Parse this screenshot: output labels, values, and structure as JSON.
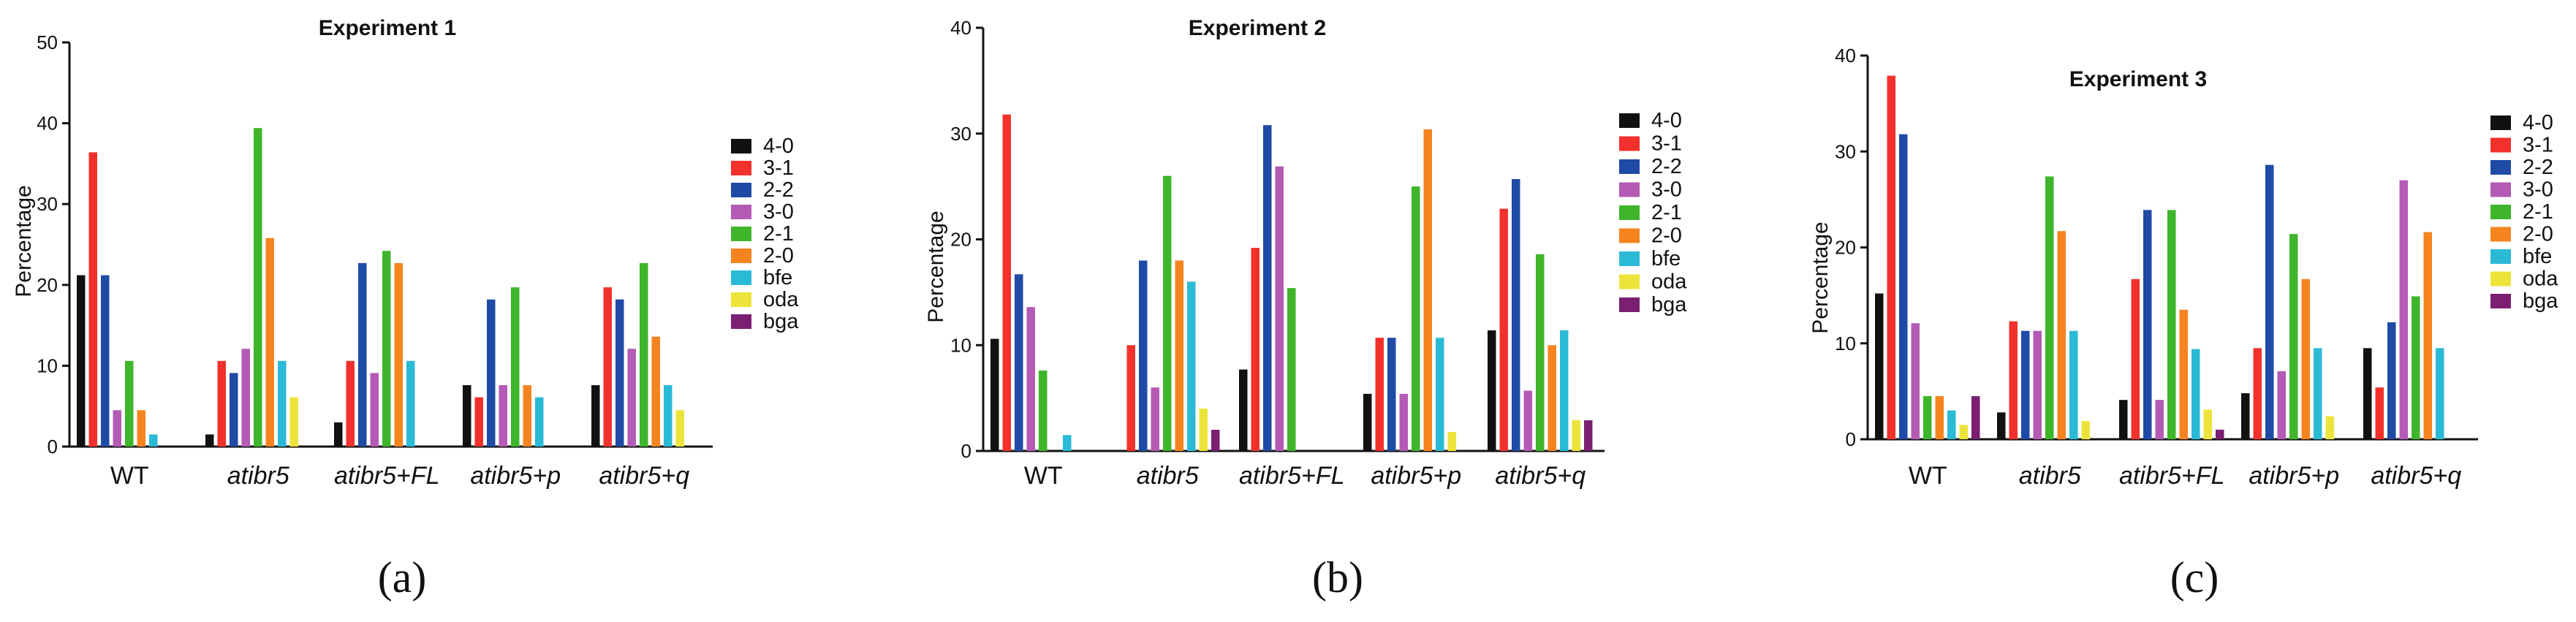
{
  "legend_items": [
    {
      "name": "4-0",
      "color": "#111111"
    },
    {
      "name": "3-1",
      "color": "#f2312c"
    },
    {
      "name": "2-2",
      "color": "#1f4aa6"
    },
    {
      "name": "3-0",
      "color": "#b35bb5"
    },
    {
      "name": "2-1",
      "color": "#3fb52b"
    },
    {
      "name": "2-0",
      "color": "#f5841f"
    },
    {
      "name": "bfe",
      "color": "#2bbad6"
    },
    {
      "name": "oda",
      "color": "#ece43a"
    },
    {
      "name": "bga",
      "color": "#7a1f72"
    }
  ],
  "panel_labels": [
    "(a)",
    "(b)",
    "(c)"
  ],
  "chart_data": [
    {
      "type": "bar",
      "title": "Experiment 1",
      "ylabel": "Percentage",
      "xlabel": "",
      "ylim": [
        0,
        50
      ],
      "yticks": [
        0,
        10,
        20,
        30,
        40,
        50
      ],
      "categories": [
        "WT",
        "atibr5",
        "atibr5+FL",
        "atibr5+p",
        "atibr5+q"
      ],
      "category_italic": [
        false,
        true,
        true,
        true,
        true
      ],
      "series": [
        {
          "name": "4-0",
          "values": [
            21.2,
            1.5,
            3.0,
            7.6,
            7.6
          ]
        },
        {
          "name": "3-1",
          "values": [
            36.4,
            10.6,
            10.6,
            6.1,
            19.7
          ]
        },
        {
          "name": "2-2",
          "values": [
            21.2,
            9.1,
            22.7,
            18.2,
            18.2
          ]
        },
        {
          "name": "3-0",
          "values": [
            4.5,
            12.1,
            9.1,
            7.6,
            12.1
          ]
        },
        {
          "name": "2-1",
          "values": [
            10.6,
            39.4,
            24.2,
            19.7,
            22.7
          ]
        },
        {
          "name": "2-0",
          "values": [
            4.5,
            25.8,
            22.7,
            7.6,
            13.6
          ]
        },
        {
          "name": "bfe",
          "values": [
            1.5,
            10.6,
            10.6,
            6.1,
            7.6
          ]
        },
        {
          "name": "oda",
          "values": [
            0,
            6.1,
            0,
            0,
            4.5
          ]
        },
        {
          "name": "bga",
          "values": [
            0,
            0,
            0,
            0,
            0
          ]
        }
      ]
    },
    {
      "type": "bar",
      "title": "Experiment 2",
      "ylabel": "Percentage",
      "xlabel": "",
      "ylim": [
        0,
        40
      ],
      "yticks": [
        0,
        10,
        20,
        30,
        40
      ],
      "categories": [
        "WT",
        "atibr5",
        "atibr5+FL",
        "atibr5+p",
        "atibr5+q"
      ],
      "category_italic": [
        false,
        true,
        true,
        true,
        true
      ],
      "series": [
        {
          "name": "4-0",
          "values": [
            10.6,
            0,
            7.7,
            5.4,
            11.4
          ]
        },
        {
          "name": "3-1",
          "values": [
            31.8,
            10.0,
            19.2,
            10.7,
            22.9
          ]
        },
        {
          "name": "2-2",
          "values": [
            16.7,
            18.0,
            30.8,
            10.7,
            25.7
          ]
        },
        {
          "name": "3-0",
          "values": [
            13.6,
            6.0,
            26.9,
            5.4,
            5.7
          ]
        },
        {
          "name": "2-1",
          "values": [
            7.6,
            26.0,
            15.4,
            25.0,
            18.6
          ]
        },
        {
          "name": "2-0",
          "values": [
            0,
            18.0,
            0,
            30.4,
            10.0
          ]
        },
        {
          "name": "bfe",
          "values": [
            1.5,
            16.0,
            0,
            10.7,
            11.4
          ]
        },
        {
          "name": "oda",
          "values": [
            0,
            4.0,
            0,
            1.8,
            2.9
          ]
        },
        {
          "name": "bga",
          "values": [
            0,
            2.0,
            0,
            0,
            2.9
          ]
        }
      ]
    },
    {
      "type": "bar",
      "title": "Experiment 3",
      "ylabel": "Percentage",
      "xlabel": "",
      "ylim": [
        0,
        40
      ],
      "yticks": [
        0,
        10,
        20,
        30,
        40
      ],
      "categories": [
        "WT",
        "atibr5",
        "atibr5+FL",
        "atibr5+p",
        "atibr5+q"
      ],
      "category_italic": [
        false,
        true,
        true,
        true,
        true
      ],
      "series": [
        {
          "name": "4-0",
          "values": [
            15.2,
            2.8,
            4.1,
            4.8,
            9.5
          ]
        },
        {
          "name": "3-1",
          "values": [
            37.9,
            12.3,
            16.7,
            9.5,
            5.4
          ]
        },
        {
          "name": "2-2",
          "values": [
            31.8,
            11.3,
            23.9,
            28.6,
            12.2
          ]
        },
        {
          "name": "3-0",
          "values": [
            12.1,
            11.3,
            4.1,
            7.1,
            27.0
          ]
        },
        {
          "name": "2-1",
          "values": [
            4.5,
            27.4,
            23.9,
            21.4,
            14.9
          ]
        },
        {
          "name": "2-0",
          "values": [
            4.5,
            21.7,
            13.5,
            16.7,
            21.6
          ]
        },
        {
          "name": "bfe",
          "values": [
            3.0,
            11.3,
            9.4,
            9.5,
            9.5
          ]
        },
        {
          "name": "oda",
          "values": [
            1.5,
            1.9,
            3.1,
            2.4,
            0
          ]
        },
        {
          "name": "bga",
          "values": [
            4.5,
            0,
            1.0,
            0,
            0
          ]
        }
      ]
    }
  ]
}
